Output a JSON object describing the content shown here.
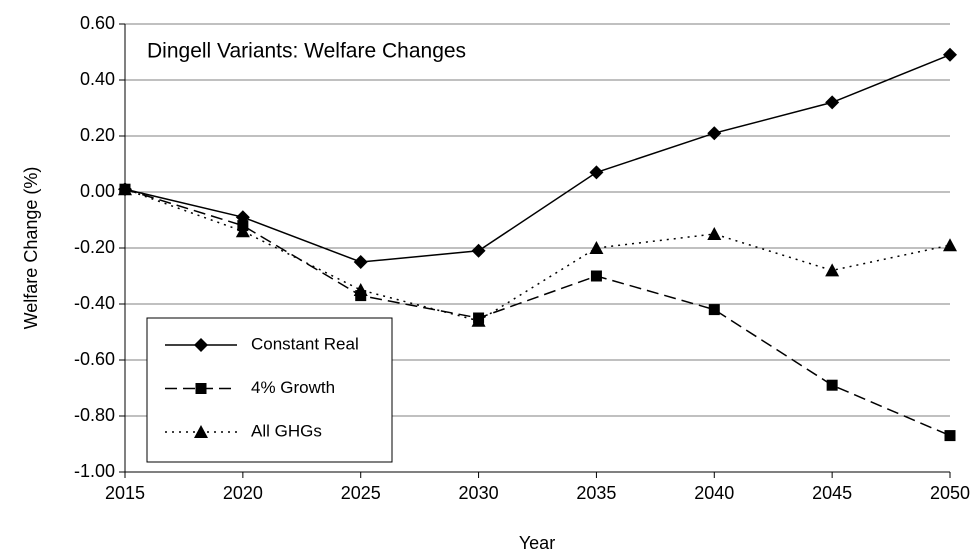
{
  "chart_data": {
    "type": "line",
    "annotation": "Dingell Variants: Welfare Changes",
    "x_label": "Year",
    "y_label": "Welfare Change (%)",
    "x": [
      2015,
      2020,
      2025,
      2030,
      2035,
      2040,
      2045,
      2050
    ],
    "xlim": [
      2015,
      2050
    ],
    "xticks": [
      2015,
      2020,
      2025,
      2030,
      2035,
      2040,
      2045,
      2050
    ],
    "ylim": [
      -1,
      0.6
    ],
    "yticks": [
      {
        "value": -1,
        "label": "-1.00"
      },
      {
        "value": -0.8,
        "label": "-0.80"
      },
      {
        "value": -0.6,
        "label": "-0.60"
      },
      {
        "value": -0.4,
        "label": "-0.40"
      },
      {
        "value": -0.2,
        "label": "-0.20"
      },
      {
        "value": 0,
        "label": "0.00"
      },
      {
        "value": 0.2,
        "label": "0.20"
      },
      {
        "value": 0.4,
        "label": "0.40"
      },
      {
        "value": 0.6,
        "label": "0.60"
      }
    ],
    "grid": true,
    "legend": "lower left",
    "series": [
      {
        "name": "Constant Real",
        "color": "#000000",
        "linestyle": "solid",
        "marker": "diamond",
        "values": [
          0.01,
          -0.09,
          -0.25,
          -0.21,
          0.07,
          0.21,
          0.32,
          0.49
        ]
      },
      {
        "name": "4% Growth",
        "color": "#000000",
        "linestyle": "dashed",
        "marker": "square",
        "values": [
          0.01,
          -0.12,
          -0.37,
          -0.45,
          -0.3,
          -0.42,
          -0.69,
          -0.87
        ]
      },
      {
        "name": "All GHGs",
        "color": "#000000",
        "linestyle": "dotted",
        "marker": "triangle",
        "values": [
          0.01,
          -0.14,
          -0.35,
          -0.46,
          -0.2,
          -0.15,
          -0.28,
          -0.19
        ]
      }
    ]
  }
}
